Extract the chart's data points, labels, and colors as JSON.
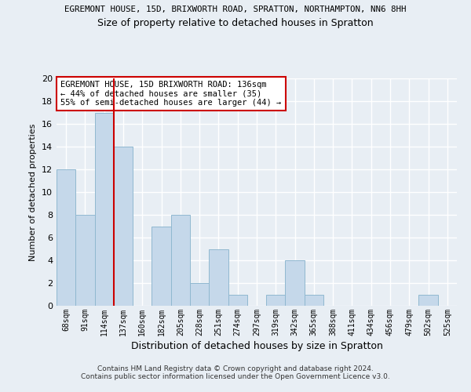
{
  "title_main": "EGREMONT HOUSE, 15D, BRIXWORTH ROAD, SPRATTON, NORTHAMPTON, NN6 8HH",
  "title_sub": "Size of property relative to detached houses in Spratton",
  "xlabel": "Distribution of detached houses by size in Spratton",
  "ylabel": "Number of detached properties",
  "categories": [
    "68sqm",
    "91sqm",
    "114sqm",
    "137sqm",
    "160sqm",
    "182sqm",
    "205sqm",
    "228sqm",
    "251sqm",
    "274sqm",
    "297sqm",
    "319sqm",
    "342sqm",
    "365sqm",
    "388sqm",
    "411sqm",
    "434sqm",
    "456sqm",
    "479sqm",
    "502sqm",
    "525sqm"
  ],
  "values": [
    12,
    8,
    17,
    14,
    0,
    7,
    8,
    2,
    5,
    1,
    0,
    1,
    4,
    1,
    0,
    0,
    0,
    0,
    0,
    1,
    0
  ],
  "bar_color": "#c5d8ea",
  "bar_edge_color": "#90b8d0",
  "vline_color": "#cc0000",
  "vline_x_index": 2,
  "annotation_text": "EGREMONT HOUSE, 15D BRIXWORTH ROAD: 136sqm\n← 44% of detached houses are smaller (35)\n55% of semi-detached houses are larger (44) →",
  "annotation_box_color": "white",
  "annotation_box_edge": "#cc0000",
  "ylim": [
    0,
    20
  ],
  "yticks": [
    0,
    2,
    4,
    6,
    8,
    10,
    12,
    14,
    16,
    18,
    20
  ],
  "footer": "Contains HM Land Registry data © Crown copyright and database right 2024.\nContains public sector information licensed under the Open Government Licence v3.0.",
  "bg_color": "#e8eef4",
  "grid_color": "white"
}
